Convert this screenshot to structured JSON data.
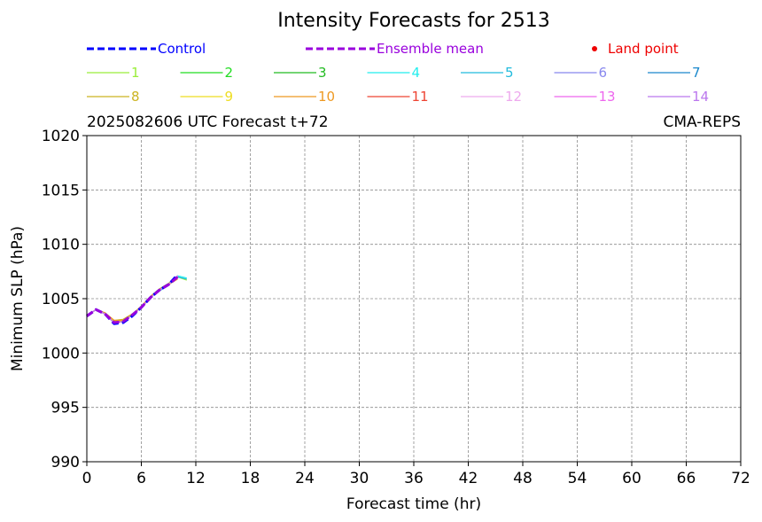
{
  "chart_data": {
    "type": "line",
    "title": "Intensity Forecasts for 2513",
    "info_left": "2025082606 UTC Forecast t+72",
    "info_right": "CMA-REPS",
    "xlabel": "Forecast time (hr)",
    "ylabel": "Minimum SLP (hPa)",
    "xlim": [
      0,
      72
    ],
    "ylim": [
      990,
      1020
    ],
    "xticks": [
      0,
      6,
      12,
      18,
      24,
      30,
      36,
      42,
      48,
      54,
      60,
      66,
      72
    ],
    "yticks": [
      990,
      995,
      1000,
      1005,
      1010,
      1015,
      1020
    ],
    "grid": true,
    "legend_placement": "top",
    "legend": {
      "control": {
        "label": "Control",
        "color": "#0000ff"
      },
      "ensemble_mean": {
        "label": "Ensemble mean",
        "color": "#9900dd"
      },
      "land_point": {
        "label": "Land point",
        "color": "#ee0000"
      },
      "members": [
        {
          "label": "1",
          "color": "#9aee3a"
        },
        {
          "label": "2",
          "color": "#22dd22"
        },
        {
          "label": "3",
          "color": "#22bb22"
        },
        {
          "label": "4",
          "color": "#22eeee"
        },
        {
          "label": "5",
          "color": "#22bbdd"
        },
        {
          "label": "6",
          "color": "#8888ee"
        },
        {
          "label": "7",
          "color": "#1a88cc"
        },
        {
          "label": "8",
          "color": "#ccb422"
        },
        {
          "label": "9",
          "color": "#eedd22"
        },
        {
          "label": "10",
          "color": "#ee9922"
        },
        {
          "label": "11",
          "color": "#ee4433"
        },
        {
          "label": "12",
          "color": "#eeaaee"
        },
        {
          "label": "13",
          "color": "#ee66ee"
        },
        {
          "label": "14",
          "color": "#bb77ee"
        }
      ]
    },
    "series": [
      {
        "name": "1",
        "x": [
          0,
          1,
          2,
          3,
          4,
          5,
          6,
          7,
          8,
          9,
          10,
          11
        ],
        "y": [
          1003.4,
          1004.0,
          1003.6,
          1002.9,
          1003.0,
          1003.5,
          1004.2,
          1005.1,
          1005.8,
          1006.3,
          1007.0,
          1006.7
        ]
      },
      {
        "name": "2",
        "x": [
          0,
          1,
          2,
          3,
          4,
          5,
          6,
          7,
          8,
          9,
          10
        ],
        "y": [
          1003.4,
          1004.0,
          1003.6,
          1002.8,
          1002.9,
          1003.5,
          1004.2,
          1005.1,
          1005.8,
          1006.3,
          1007.1
        ]
      },
      {
        "name": "3",
        "x": [
          0,
          1,
          2,
          3,
          4,
          5,
          6,
          7,
          8,
          9,
          10
        ],
        "y": [
          1003.4,
          1004.0,
          1003.7,
          1002.9,
          1003.0,
          1003.5,
          1004.3,
          1005.2,
          1005.9,
          1006.4,
          1007.1
        ]
      },
      {
        "name": "4",
        "x": [
          0,
          1,
          2,
          3,
          4,
          5,
          6,
          7,
          8,
          9,
          10,
          11
        ],
        "y": [
          1003.4,
          1004.0,
          1003.6,
          1002.8,
          1002.9,
          1003.5,
          1004.2,
          1005.1,
          1005.8,
          1006.3,
          1007.1,
          1006.9
        ]
      },
      {
        "name": "5",
        "x": [
          0,
          1,
          2,
          3,
          4,
          5,
          6,
          7,
          8,
          9,
          10,
          11
        ],
        "y": [
          1003.4,
          1004.0,
          1003.6,
          1002.8,
          1002.9,
          1003.5,
          1004.2,
          1005.1,
          1005.7,
          1006.3,
          1007.0,
          1006.8
        ]
      },
      {
        "name": "6",
        "x": [
          0,
          1,
          2,
          3,
          4,
          5,
          6,
          7,
          8,
          9,
          10
        ],
        "y": [
          1003.4,
          1004.0,
          1003.6,
          1002.8,
          1002.9,
          1003.5,
          1004.2,
          1005.1,
          1005.8,
          1006.3,
          1007.1
        ]
      },
      {
        "name": "7",
        "x": [
          0,
          1,
          2,
          3,
          4,
          5,
          6,
          7,
          8,
          9,
          10
        ],
        "y": [
          1003.4,
          1004.0,
          1003.6,
          1002.8,
          1002.9,
          1003.5,
          1004.2,
          1005.1,
          1005.8,
          1006.3,
          1007.0
        ]
      },
      {
        "name": "8",
        "x": [
          0,
          1,
          2,
          3,
          4,
          5,
          6,
          7,
          8,
          9,
          10
        ],
        "y": [
          1003.4,
          1004.0,
          1003.7,
          1003.0,
          1003.1,
          1003.6,
          1004.3,
          1005.2,
          1005.9,
          1006.4,
          1006.9
        ]
      },
      {
        "name": "9",
        "x": [
          0,
          1,
          2,
          3,
          4,
          5,
          6,
          7,
          8,
          9,
          10
        ],
        "y": [
          1003.4,
          1004.0,
          1003.6,
          1002.9,
          1003.0,
          1003.5,
          1004.2,
          1005.1,
          1005.8,
          1006.3,
          1007.0
        ]
      },
      {
        "name": "10",
        "x": [
          0,
          1,
          2,
          3,
          4,
          5,
          6,
          7,
          8,
          9,
          10
        ],
        "y": [
          1003.4,
          1004.0,
          1003.7,
          1003.0,
          1003.0,
          1003.5,
          1004.3,
          1005.2,
          1005.8,
          1006.3,
          1006.8
        ]
      },
      {
        "name": "11",
        "x": [
          0,
          1,
          2,
          3,
          4,
          5,
          6,
          7,
          8,
          9,
          10
        ],
        "y": [
          1003.4,
          1004.0,
          1003.6,
          1002.8,
          1002.9,
          1003.5,
          1004.2,
          1005.1,
          1005.8,
          1006.3,
          1007.0
        ]
      },
      {
        "name": "12",
        "x": [
          0,
          1,
          2,
          3,
          4,
          5,
          6,
          7,
          8,
          9,
          10
        ],
        "y": [
          1003.4,
          1004.0,
          1003.6,
          1002.8,
          1002.9,
          1003.5,
          1004.2,
          1005.1,
          1005.8,
          1006.3,
          1007.1
        ]
      },
      {
        "name": "13",
        "x": [
          0,
          1,
          2,
          3,
          4,
          5,
          6,
          7,
          8,
          9,
          10
        ],
        "y": [
          1003.4,
          1004.0,
          1003.6,
          1002.8,
          1002.9,
          1003.5,
          1004.2,
          1005.1,
          1005.8,
          1006.3,
          1007.1
        ]
      },
      {
        "name": "14",
        "x": [
          0,
          1,
          2,
          3,
          4,
          5,
          6,
          7,
          8,
          9,
          10
        ],
        "y": [
          1003.4,
          1004.0,
          1003.6,
          1002.8,
          1002.9,
          1003.5,
          1004.2,
          1005.1,
          1005.8,
          1006.3,
          1007.0
        ]
      },
      {
        "name": "Control",
        "x": [
          0,
          1,
          2,
          3,
          4,
          5,
          6,
          7,
          8,
          9,
          10
        ],
        "y": [
          1003.4,
          1004.0,
          1003.6,
          1002.7,
          1002.8,
          1003.4,
          1004.2,
          1005.1,
          1005.8,
          1006.3,
          1007.2
        ]
      },
      {
        "name": "Ensemble mean",
        "x": [
          0,
          1,
          2,
          3,
          4,
          5,
          6,
          7,
          8,
          9,
          10
        ],
        "y": [
          1003.4,
          1004.0,
          1003.6,
          1002.8,
          1002.9,
          1003.5,
          1004.2,
          1005.1,
          1005.8,
          1006.3,
          1007.0
        ]
      }
    ]
  }
}
